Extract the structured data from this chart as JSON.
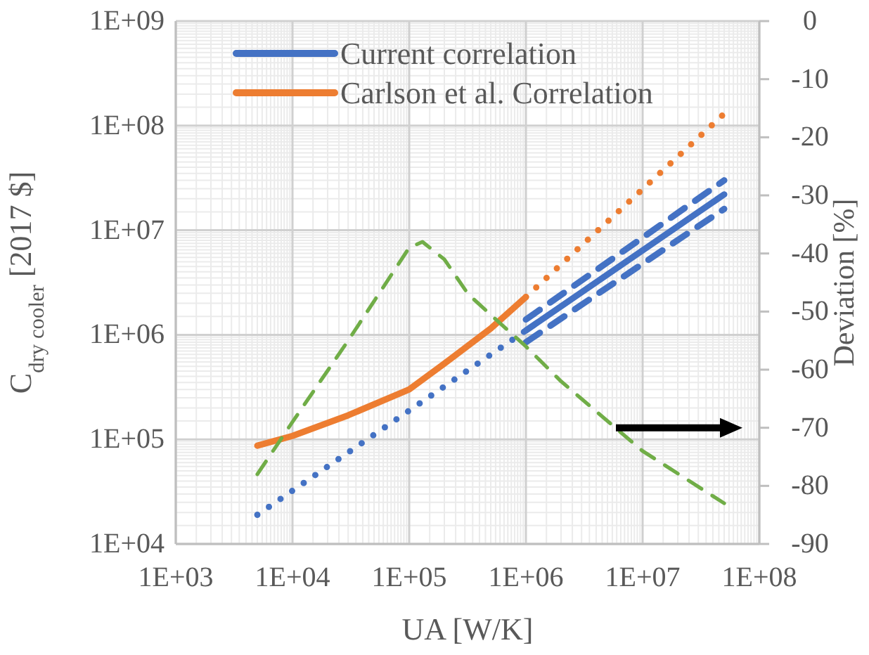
{
  "chart_data": {
    "type": "line",
    "xlabel": "UA [W/K]",
    "ylabel": "C$_{dry cooler}$ [2017 $]",
    "y2label": "Deviation [%]",
    "xlim": [
      1000,
      100000000
    ],
    "ylim": [
      10000,
      1000000000
    ],
    "y2lim": [
      -90,
      0
    ],
    "xticks": [
      {
        "value": 1000,
        "label": "1E+03"
      },
      {
        "value": 10000,
        "label": "1E+04"
      },
      {
        "value": 100000,
        "label": "1E+05"
      },
      {
        "value": 1000000,
        "label": "1E+06"
      },
      {
        "value": 10000000,
        "label": "1E+07"
      },
      {
        "value": 100000000,
        "label": "1E+08"
      }
    ],
    "yticks": [
      {
        "value": 10000,
        "label": "1E+04"
      },
      {
        "value": 100000,
        "label": "1E+05"
      },
      {
        "value": 1000000,
        "label": "1E+06"
      },
      {
        "value": 10000000,
        "label": "1E+07"
      },
      {
        "value": 100000000,
        "label": "1E+08"
      },
      {
        "value": 1000000000,
        "label": "1E+09"
      }
    ],
    "y2ticks": [
      -90,
      -80,
      -70,
      -60,
      -50,
      -40,
      -30,
      -20,
      -10,
      0
    ],
    "log": "xy",
    "grid": true,
    "legend": "top",
    "series": [
      {
        "name": "Current correlation",
        "color": "#4472c4",
        "line_style": "solid",
        "x": [
          1000000,
          50000000
        ],
        "values": [
          1100000,
          22000000
        ]
      },
      {
        "name": "Carlson et al. Correlation",
        "color": "#ed7d31",
        "line_style": "solid",
        "x": [
          5000,
          10000,
          30000,
          100000,
          200000,
          500000,
          1000000
        ],
        "values": [
          87000,
          108000,
          170000,
          300000,
          530000,
          1150000,
          2300000
        ]
      },
      {
        "color": "#4472c4",
        "line_style": "dashed",
        "x": [
          1000000,
          50000000
        ],
        "values": [
          1400000,
          30000000
        ]
      },
      {
        "color": "#4472c4",
        "line_style": "dashed",
        "x": [
          1000000,
          50000000
        ],
        "values": [
          850000,
          16000000
        ]
      },
      {
        "color": "#4472c4",
        "line_style": "dotted",
        "x": [
          5000,
          1000000
        ],
        "values": [
          19000,
          1100000
        ]
      },
      {
        "color": "#ed7d31",
        "line_style": "dotted",
        "x": [
          1000000,
          50000000
        ],
        "values": [
          2300000,
          130000000
        ]
      },
      {
        "color": "#70ad47",
        "line_style": "dashed",
        "axis": "y2",
        "x": [
          5000,
          10000,
          30000,
          100000,
          130000,
          200000,
          320000,
          600000,
          1000000,
          2000000,
          10000000,
          50000000
        ],
        "values": [
          -78,
          -69,
          -55,
          -39,
          -38,
          -41,
          -47,
          -52,
          -56,
          -62,
          -74,
          -83
        ]
      }
    ]
  }
}
